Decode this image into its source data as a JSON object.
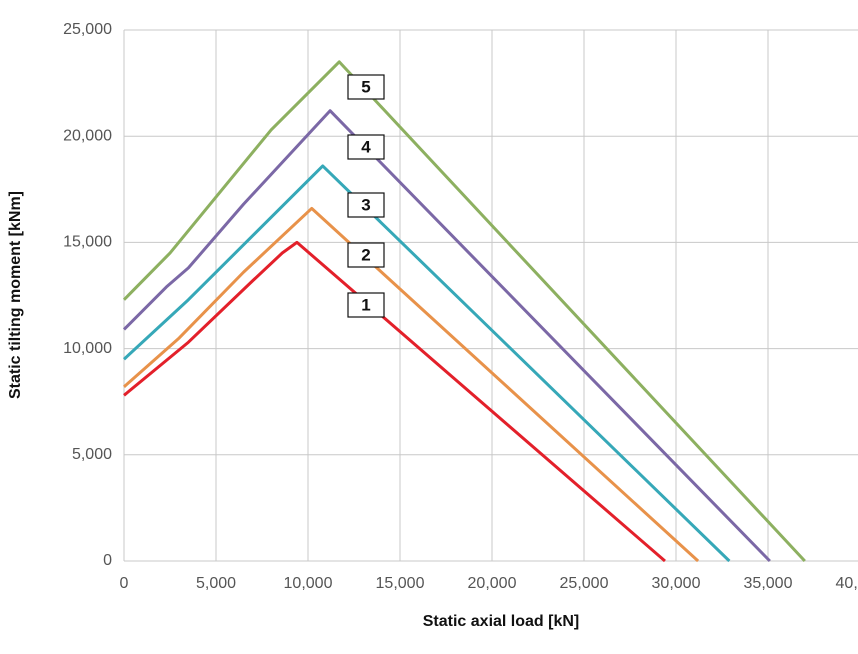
{
  "chart_data": {
    "type": "line",
    "x_label": "Static axial load [kN]",
    "y_label": "Static tilting moment [kNm]",
    "xlim": [
      0,
      40000
    ],
    "xticks": [
      0,
      {
        "value": 5000,
        "label": "5,000"
      },
      {
        "value": 10000,
        "label": "10,000"
      },
      {
        "value": 15000,
        "label": "15,000"
      },
      {
        "value": 20000,
        "label": "20,000"
      },
      {
        "value": 25000,
        "label": "25,000"
      },
      {
        "value": 30000,
        "label": "30,000"
      },
      {
        "value": 35000,
        "label": "35,000"
      },
      {
        "value": 40000,
        "label": "40,000"
      }
    ],
    "ylim": [
      0,
      25000
    ],
    "yticks": [
      0,
      {
        "value": 5000,
        "label": "5,000"
      },
      {
        "value": 10000,
        "label": "10,000"
      },
      {
        "value": 15000,
        "label": "15,000"
      },
      {
        "value": 20000,
        "label": "20,000"
      },
      {
        "value": 25000,
        "label": "25,000"
      }
    ],
    "grid": true,
    "series": [
      {
        "name": "1",
        "color": "#e3202a",
        "x": [
          0,
          3500,
          7000,
          8600,
          9400,
          29400
        ],
        "values": [
          7800,
          10300,
          13200,
          14500,
          15000,
          0
        ]
      },
      {
        "name": "2",
        "color": "#e8924a",
        "x": [
          0,
          3000,
          6500,
          10200,
          31200
        ],
        "values": [
          8200,
          10500,
          13600,
          16600,
          0
        ]
      },
      {
        "name": "3",
        "color": "#36a8b8",
        "x": [
          0,
          3500,
          10800,
          32900
        ],
        "values": [
          9500,
          12300,
          18600,
          0
        ]
      },
      {
        "name": "4",
        "color": "#7b68a6",
        "x": [
          0,
          2300,
          3500,
          6500,
          11200,
          35100
        ],
        "values": [
          10900,
          12900,
          13800,
          16800,
          21200,
          0
        ]
      },
      {
        "name": "5",
        "color": "#8db060",
        "x": [
          0,
          2500,
          8000,
          11700,
          37000
        ],
        "values": [
          12300,
          14500,
          20300,
          23500,
          0
        ]
      }
    ]
  }
}
